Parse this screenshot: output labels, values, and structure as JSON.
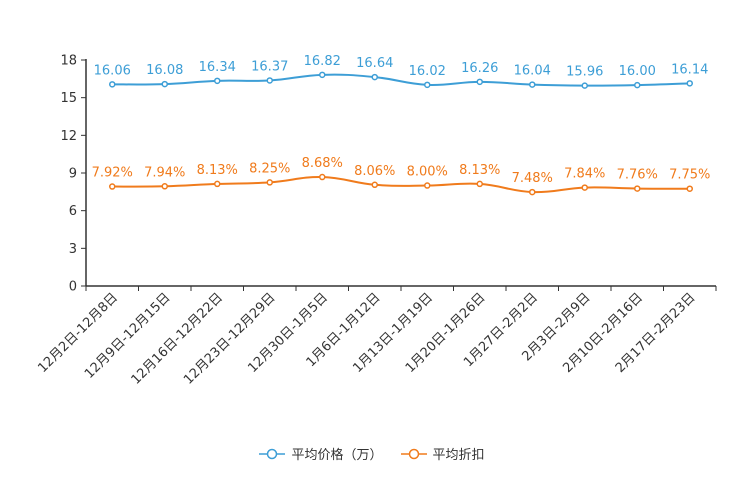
{
  "chart_data": {
    "type": "line",
    "categories": [
      "12月2日-12月8日",
      "12月9日-12月15日",
      "12月16日-12月22日",
      "12月23日-12月29日",
      "12月30日-1月5日",
      "1月6日-1月12日",
      "1月13日-1月19日",
      "1月20日-1月26日",
      "1月27日-2月2日",
      "2月3日-2月9日",
      "2月10日-2月16日",
      "2月17日-2月23日"
    ],
    "ylim": [
      0,
      18
    ],
    "yticks": [
      0,
      3,
      6,
      9,
      12,
      15,
      18
    ],
    "series": [
      {
        "name": "平均价格（万）",
        "color": "#3d9ed6",
        "values": [
          16.06,
          16.08,
          16.34,
          16.37,
          16.82,
          16.64,
          16.02,
          16.26,
          16.04,
          15.96,
          16.0,
          16.14
        ],
        "labels": [
          "16.06",
          "16.08",
          "16.34",
          "16.37",
          "16.82",
          "16.64",
          "16.02",
          "16.26",
          "16.04",
          "15.96",
          "16.00",
          "16.14"
        ]
      },
      {
        "name": "平均折扣",
        "color": "#f07b1c",
        "values": [
          7.92,
          7.94,
          8.13,
          8.25,
          8.68,
          8.06,
          8.0,
          8.13,
          7.48,
          7.84,
          7.76,
          7.75
        ],
        "labels": [
          "7.92%",
          "7.94%",
          "8.13%",
          "8.25%",
          "8.68%",
          "8.06%",
          "8.00%",
          "8.13%",
          "7.48%",
          "7.84%",
          "7.76%",
          "7.75%"
        ]
      }
    ]
  }
}
